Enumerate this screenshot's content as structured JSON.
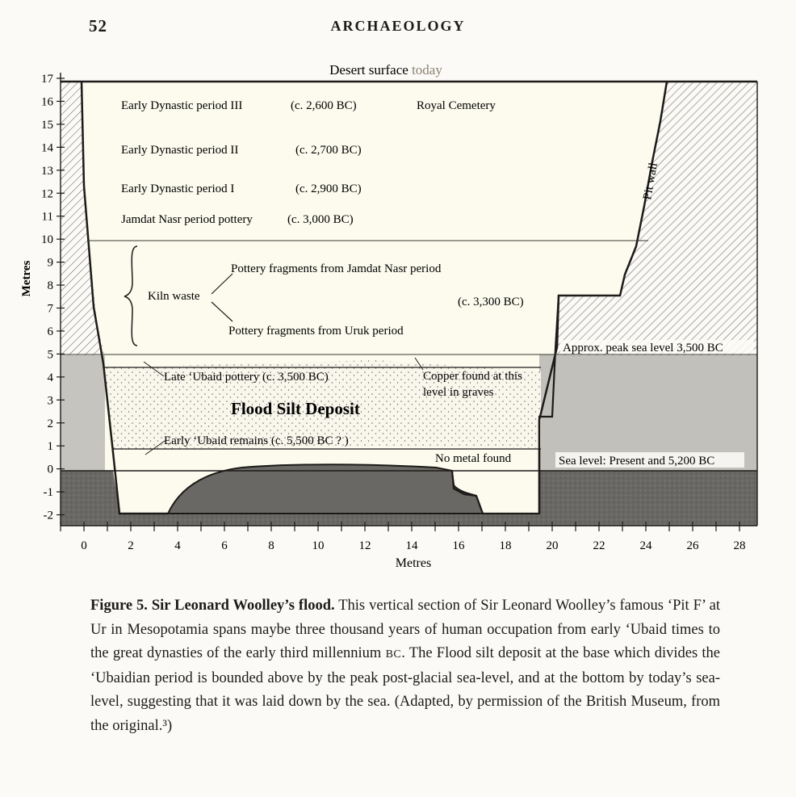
{
  "page": {
    "number": "52",
    "running_title": "ARCHAEOLOGY"
  },
  "figure": {
    "surface_label_a": "Desert surface ",
    "surface_label_b": "today",
    "y_axis_label": "Metres",
    "x_axis_label": "Metres",
    "y_ticks": [
      "17",
      "16",
      "15",
      "14",
      "13",
      "12",
      "11",
      "10",
      "9",
      "8",
      "7",
      "6",
      "5",
      "4",
      "3",
      "2",
      "1",
      "0",
      "-1",
      "-2"
    ],
    "x_ticks": [
      "0",
      "2",
      "4",
      "6",
      "8",
      "10",
      "12",
      "14",
      "16",
      "18",
      "20",
      "22",
      "24",
      "26",
      "28"
    ],
    "periods": [
      {
        "name": "Early Dynastic period III",
        "date": "(c. 2,600 BC)",
        "note": "Royal Cemetery"
      },
      {
        "name": "Early Dynastic period II",
        "date": "(c. 2,700 BC)"
      },
      {
        "name": "Early Dynastic period I",
        "date": "(c. 2,900 BC)"
      },
      {
        "name": "Jamdat Nasr period pottery",
        "date": "(c. 3,000 BC)"
      }
    ],
    "kiln_waste": "Kiln waste",
    "pottery_jamdat": "Pottery fragments from Jamdat Nasr period",
    "pottery_uruk": "Pottery fragments from Uruk period",
    "kiln_date": "(c. 3,300 BC)",
    "pit_wall": "Pit wall",
    "peak_sea_level": "Approx. peak sea level 3,500 BC",
    "late_ubaid": "Late ‘Ubaid pottery (c. 3,500 BC)",
    "copper_line1": "Copper found at this",
    "copper_line2": "level in graves",
    "flood_silt": "Flood Silt Deposit",
    "early_ubaid": "Early ‘Ubaid remains (c. 5,500 BC ? )",
    "no_metal": "No metal found",
    "sea_level": "Sea level: Present and 5,200 BC"
  },
  "caption": {
    "label": "Figure 5. Sir Leonard Woolley’s flood.",
    "text_before_bc": " This vertical section of Sir Leonard Woolley’s famous ‘Pit F’ at Ur in Mesopotamia spans maybe three thousand years of human occupation from early ‘Ubaid times to the great dynasties of the early third millennium ",
    "bc": "BC",
    "text_after_bc": ". The Flood silt deposit at the base which divides the ‘Ubaidian period is bounded above by the peak post-glacial sea-level, and at the bottom by today’s sea-level, suggesting that it was laid down by the sea. (Adapted, by permission of the British Museum, from the original.³)"
  },
  "colors": {
    "ink": "#1d1b18",
    "paper": "#fbfaf6",
    "pit_fill": "#fcfbee",
    "bedrock": "#5e5c58",
    "sea_band": "#bfbdb9",
    "silt_dot": "#6b6862"
  }
}
